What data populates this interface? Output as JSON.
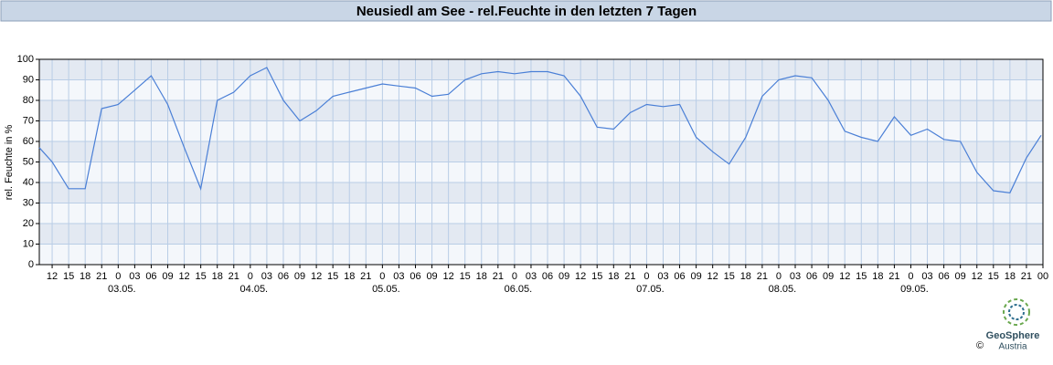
{
  "chart_data": {
    "type": "line",
    "title": "Neusiedl am See - rel.Feuchte in den letzten 7 Tagen",
    "ylabel": "rel. Feuchte in %",
    "x": [
      "02.05. 09:40",
      "02.05. 12:00",
      "02.05. 15:00",
      "02.05. 18:00",
      "02.05. 21:00",
      "03.05. 00:00",
      "03.05. 03:00",
      "03.05. 06:00",
      "03.05. 09:00",
      "03.05. 12:00",
      "03.05. 15:00",
      "03.05. 18:00",
      "03.05. 21:00",
      "04.05. 00:00",
      "04.05. 03:00",
      "04.05. 06:00",
      "04.05. 09:00",
      "04.05. 12:00",
      "04.05. 15:00",
      "04.05. 18:00",
      "04.05. 21:00",
      "05.05. 00:00",
      "05.05. 03:00",
      "05.05. 06:00",
      "05.05. 09:00",
      "05.05. 12:00",
      "05.05. 15:00",
      "05.05. 18:00",
      "05.05. 21:00",
      "06.05. 00:00",
      "06.05. 03:00",
      "06.05. 06:00",
      "06.05. 09:00",
      "06.05. 12:00",
      "06.05. 15:00",
      "06.05. 18:00",
      "06.05. 21:00",
      "07.05. 00:00",
      "07.05. 03:00",
      "07.05. 06:00",
      "07.05. 09:00",
      "07.05. 12:00",
      "07.05. 15:00",
      "07.05. 18:00",
      "07.05. 21:00",
      "08.05. 00:00",
      "08.05. 03:00",
      "08.05. 06:00",
      "08.05. 09:00",
      "08.05. 12:00",
      "08.05. 15:00",
      "08.05. 18:00",
      "08.05. 21:00",
      "09.05. 00:00",
      "09.05. 03:00",
      "09.05. 06:00",
      "09.05. 09:00",
      "09.05. 12:00",
      "09.05. 15:00",
      "09.05. 18:00",
      "09.05. 21:00",
      "09.05. 23:40"
    ],
    "series": [
      {
        "name": "rel. Feuchte",
        "color": "#4a7fd6",
        "values": [
          57,
          50,
          37,
          37,
          76,
          78,
          85,
          92,
          78,
          57,
          37,
          80,
          84,
          92,
          96,
          80,
          70,
          75,
          82,
          84,
          86,
          88,
          87,
          86,
          82,
          83,
          90,
          93,
          94,
          93,
          94,
          94,
          92,
          82,
          67,
          66,
          74,
          78,
          77,
          78,
          62,
          55,
          49,
          62,
          82,
          90,
          92,
          91,
          80,
          65,
          62,
          60,
          72,
          63,
          66,
          61,
          60,
          45,
          36,
          35,
          52,
          63
        ]
      }
    ],
    "xlim": [
      "02.05. 09:40",
      "10.05. 00:00"
    ],
    "xticks": [
      {
        "value": "02.05. 12:00",
        "label": "12"
      },
      {
        "value": "02.05. 15:00",
        "label": "15"
      },
      {
        "value": "02.05. 18:00",
        "label": "18"
      },
      {
        "value": "02.05. 21:00",
        "label": "21"
      },
      {
        "value": "03.05. 00:00",
        "label": "0"
      },
      {
        "value": "03.05. 03:00",
        "label": "03"
      },
      {
        "value": "03.05. 06:00",
        "label": "06"
      },
      {
        "value": "03.05. 09:00",
        "label": "09"
      },
      {
        "value": "03.05. 12:00",
        "label": "12"
      },
      {
        "value": "03.05. 15:00",
        "label": "15"
      },
      {
        "value": "03.05. 18:00",
        "label": "18"
      },
      {
        "value": "03.05. 21:00",
        "label": "21"
      },
      {
        "value": "04.05. 00:00",
        "label": "0"
      },
      {
        "value": "04.05. 03:00",
        "label": "03"
      },
      {
        "value": "04.05. 06:00",
        "label": "06"
      },
      {
        "value": "04.05. 09:00",
        "label": "09"
      },
      {
        "value": "04.05. 12:00",
        "label": "12"
      },
      {
        "value": "04.05. 15:00",
        "label": "15"
      },
      {
        "value": "04.05. 18:00",
        "label": "18"
      },
      {
        "value": "04.05. 21:00",
        "label": "21"
      },
      {
        "value": "05.05. 00:00",
        "label": "0"
      },
      {
        "value": "05.05. 03:00",
        "label": "03"
      },
      {
        "value": "05.05. 06:00",
        "label": "06"
      },
      {
        "value": "05.05. 09:00",
        "label": "09"
      },
      {
        "value": "05.05. 12:00",
        "label": "12"
      },
      {
        "value": "05.05. 15:00",
        "label": "15"
      },
      {
        "value": "05.05. 18:00",
        "label": "18"
      },
      {
        "value": "05.05. 21:00",
        "label": "21"
      },
      {
        "value": "06.05. 00:00",
        "label": "0"
      },
      {
        "value": "06.05. 03:00",
        "label": "03"
      },
      {
        "value": "06.05. 06:00",
        "label": "06"
      },
      {
        "value": "06.05. 09:00",
        "label": "09"
      },
      {
        "value": "06.05. 12:00",
        "label": "12"
      },
      {
        "value": "06.05. 15:00",
        "label": "15"
      },
      {
        "value": "06.05. 18:00",
        "label": "18"
      },
      {
        "value": "06.05. 21:00",
        "label": "21"
      },
      {
        "value": "07.05. 00:00",
        "label": "0"
      },
      {
        "value": "07.05. 03:00",
        "label": "03"
      },
      {
        "value": "07.05. 06:00",
        "label": "06"
      },
      {
        "value": "07.05. 09:00",
        "label": "09"
      },
      {
        "value": "07.05. 12:00",
        "label": "12"
      },
      {
        "value": "07.05. 15:00",
        "label": "15"
      },
      {
        "value": "07.05. 18:00",
        "label": "18"
      },
      {
        "value": "07.05. 21:00",
        "label": "21"
      },
      {
        "value": "08.05. 00:00",
        "label": "0"
      },
      {
        "value": "08.05. 03:00",
        "label": "03"
      },
      {
        "value": "08.05. 06:00",
        "label": "06"
      },
      {
        "value": "08.05. 09:00",
        "label": "09"
      },
      {
        "value": "08.05. 12:00",
        "label": "12"
      },
      {
        "value": "08.05. 15:00",
        "label": "15"
      },
      {
        "value": "08.05. 18:00",
        "label": "18"
      },
      {
        "value": "08.05. 21:00",
        "label": "21"
      },
      {
        "value": "09.05. 00:00",
        "label": "0"
      },
      {
        "value": "09.05. 03:00",
        "label": "03"
      },
      {
        "value": "09.05. 06:00",
        "label": "06"
      },
      {
        "value": "09.05. 09:00",
        "label": "09"
      },
      {
        "value": "09.05. 12:00",
        "label": "12"
      },
      {
        "value": "09.05. 15:00",
        "label": "15"
      },
      {
        "value": "09.05. 18:00",
        "label": "18"
      },
      {
        "value": "09.05. 21:00",
        "label": "21"
      },
      {
        "value": "10.05. 00:00",
        "label": "00"
      }
    ],
    "day_labels": [
      {
        "value": "03.05. 00:00",
        "label": "03.05."
      },
      {
        "value": "04.05. 00:00",
        "label": "04.05."
      },
      {
        "value": "05.05. 00:00",
        "label": "05.05."
      },
      {
        "value": "06.05. 00:00",
        "label": "06.05."
      },
      {
        "value": "07.05. 00:00",
        "label": "07.05."
      },
      {
        "value": "08.05. 00:00",
        "label": "08.05."
      },
      {
        "value": "09.05. 00:00",
        "label": "09.05."
      }
    ],
    "ylim": [
      0,
      100
    ],
    "yticks": [
      0,
      10,
      20,
      30,
      40,
      50,
      60,
      70,
      80,
      90,
      100
    ],
    "grid": true,
    "logo": {
      "name": "GeoSphere",
      "sub": "Austria",
      "copyright": "©"
    }
  }
}
